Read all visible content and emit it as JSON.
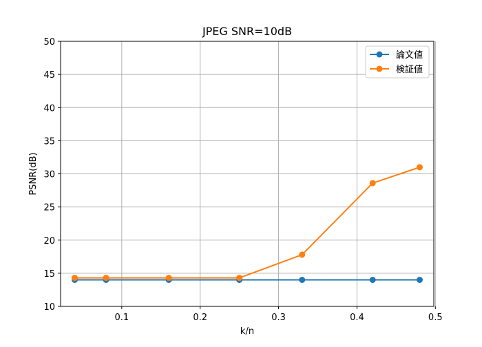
{
  "chart_data": {
    "type": "line",
    "title": "JPEG SNR=10dB",
    "xlabel": "k/n",
    "ylabel": "PSNR(dB)",
    "xlim": [
      0.022,
      0.498
    ],
    "ylim": [
      10,
      50
    ],
    "xticks": [
      0.1,
      0.2,
      0.3,
      0.4,
      0.5
    ],
    "xtick_labels": [
      "0.1",
      "0.2",
      "0.3",
      "0.4",
      "0.5"
    ],
    "yticks": [
      10,
      15,
      20,
      25,
      30,
      35,
      40,
      45,
      50
    ],
    "ytick_labels": [
      "10",
      "15",
      "20",
      "25",
      "30",
      "35",
      "40",
      "45",
      "50"
    ],
    "grid": true,
    "legend_position": "top-right",
    "x": [
      0.04,
      0.08,
      0.16,
      0.25,
      0.33,
      0.42,
      0.48
    ],
    "series": [
      {
        "name": "論文値",
        "color": "#1f77b4",
        "marker": "circle",
        "values": [
          14.0,
          14.0,
          14.0,
          14.0,
          14.0,
          14.0,
          14.0
        ]
      },
      {
        "name": "検証値",
        "color": "#ff7f0e",
        "marker": "circle",
        "values": [
          14.3,
          14.3,
          14.3,
          14.3,
          17.8,
          28.6,
          31.0
        ]
      }
    ]
  }
}
